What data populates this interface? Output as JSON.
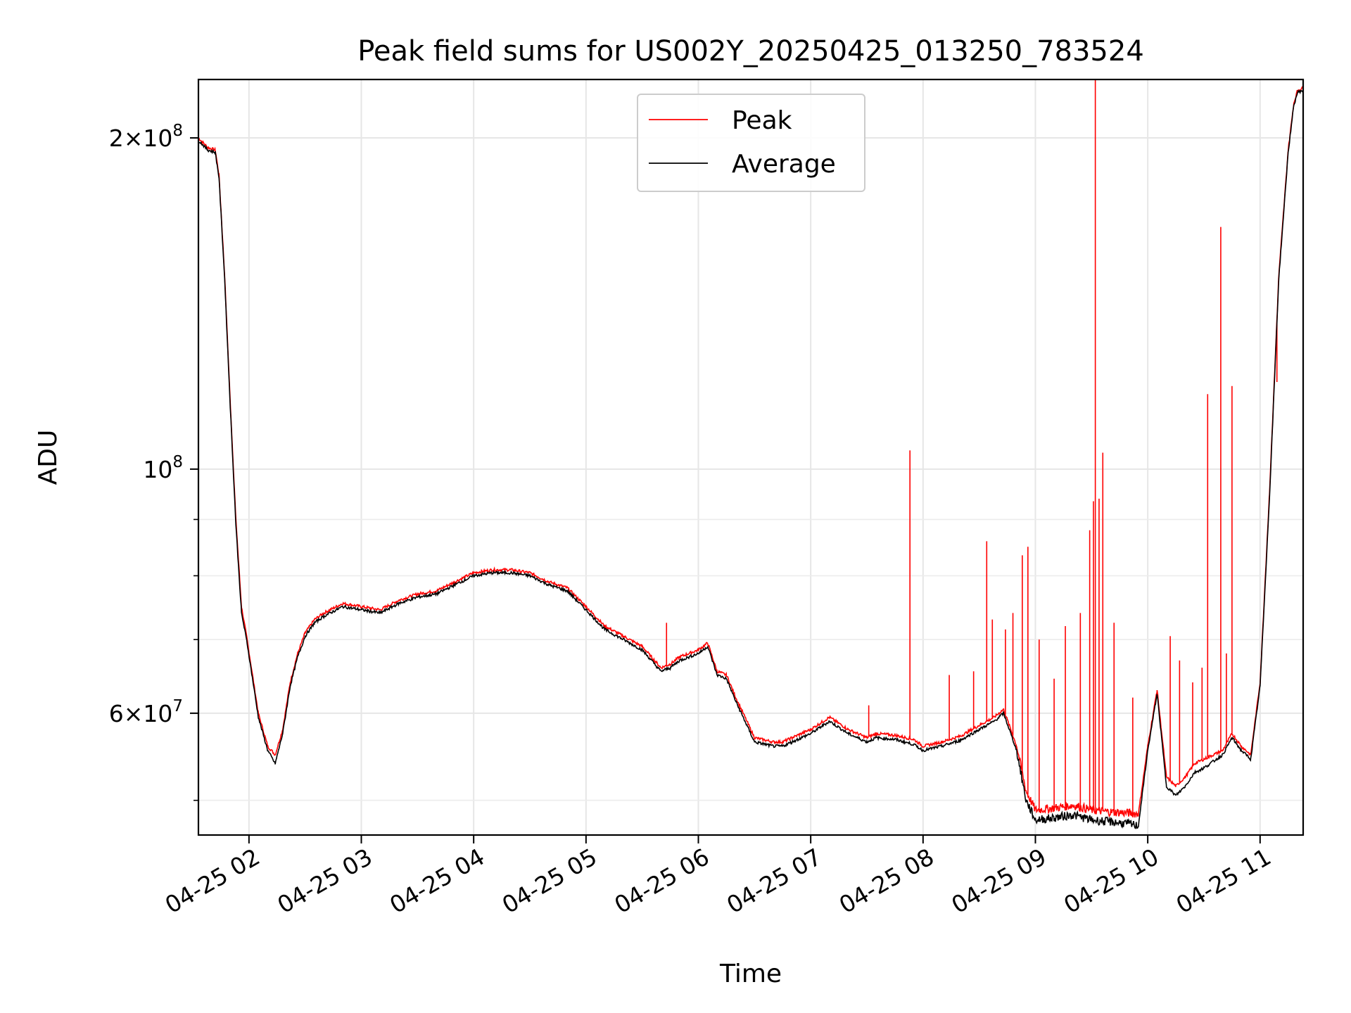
{
  "chart_data": {
    "type": "line",
    "title": "Peak field sums for US002Y_20250425_013250_783524",
    "xlabel": "Time",
    "ylabel": "ADU",
    "y_scale": "log",
    "xlim": [
      "2025-04-25 01:33",
      "2025-04-25 11:23"
    ],
    "ylim": [
      46500000,
      226000000
    ],
    "grid": true,
    "legend_position": "top-center",
    "x_ticks": [
      {
        "value": "2025-04-25 02:00",
        "label": "04-25 02"
      },
      {
        "value": "2025-04-25 03:00",
        "label": "04-25 03"
      },
      {
        "value": "2025-04-25 04:00",
        "label": "04-25 04"
      },
      {
        "value": "2025-04-25 05:00",
        "label": "04-25 05"
      },
      {
        "value": "2025-04-25 06:00",
        "label": "04-25 06"
      },
      {
        "value": "2025-04-25 07:00",
        "label": "04-25 07"
      },
      {
        "value": "2025-04-25 08:00",
        "label": "04-25 08"
      },
      {
        "value": "2025-04-25 09:00",
        "label": "04-25 09"
      },
      {
        "value": "2025-04-25 10:00",
        "label": "04-25 10"
      },
      {
        "value": "2025-04-25 11:00",
        "label": "04-25 11"
      }
    ],
    "y_major_ticks": [
      {
        "value": 60000000,
        "base": "6",
        "exp": "7"
      },
      {
        "value": 100000000,
        "base": "",
        "exp": "8"
      },
      {
        "value": 200000000,
        "base": "2",
        "exp": "8"
      }
    ],
    "y_minor_ticks": [
      50000000,
      70000000,
      80000000,
      90000000
    ],
    "series": [
      {
        "name": "Peak",
        "color": "#ff0000",
        "x": [
          "01:33",
          "01:38",
          "01:42",
          "01:44",
          "01:47",
          "01:50",
          "01:53",
          "01:56",
          "01:59",
          "02:05",
          "02:10",
          "02:14",
          "02:18",
          "02:22",
          "02:26",
          "02:30",
          "02:35",
          "02:40",
          "02:50",
          "03:00",
          "03:10",
          "03:20",
          "03:30",
          "03:40",
          "03:50",
          "04:00",
          "04:10",
          "04:20",
          "04:30",
          "04:40",
          "04:50",
          "05:00",
          "05:10",
          "05:20",
          "05:30",
          "05:40",
          "05:45",
          "05:50",
          "06:00",
          "06:05",
          "06:10",
          "06:15",
          "06:20",
          "06:30",
          "06:40",
          "06:45",
          "06:50",
          "07:00",
          "07:10",
          "07:20",
          "07:30",
          "07:35",
          "07:45",
          "07:55",
          "08:00",
          "08:10",
          "08:20",
          "08:30",
          "08:38",
          "08:43",
          "08:50",
          "08:55",
          "09:00",
          "09:10",
          "09:20",
          "09:30",
          "09:40",
          "09:50",
          "09:55",
          "10:00",
          "10:05",
          "10:10",
          "10:15",
          "10:20",
          "10:25",
          "10:30",
          "10:40",
          "10:45",
          "10:50",
          "10:55",
          "11:00",
          "11:05",
          "11:10",
          "11:15",
          "11:18",
          "11:20",
          "11:23"
        ],
        "y": [
          200000000,
          196000000,
          195000000,
          185000000,
          150000000,
          115000000,
          90000000,
          75000000,
          70000000,
          60000000,
          56000000,
          55000000,
          58000000,
          64000000,
          68000000,
          71000000,
          73000000,
          74000000,
          75500000,
          75000000,
          74500000,
          76000000,
          77000000,
          77500000,
          79000000,
          80500000,
          81000000,
          81000000,
          80500000,
          79000000,
          78000000,
          75000000,
          72000000,
          70500000,
          69000000,
          66000000,
          66500000,
          67500000,
          68500000,
          69500000,
          65500000,
          65000000,
          62000000,
          57000000,
          56500000,
          56500000,
          57000000,
          58000000,
          59500000,
          58000000,
          57000000,
          57500000,
          57300000,
          56800000,
          56000000,
          56500000,
          57200000,
          58500000,
          59500000,
          60500000,
          56000000,
          51000000,
          49000000,
          49200000,
          49500000,
          49000000,
          48800000,
          48700000,
          48600000,
          56000000,
          63000000,
          52500000,
          51500000,
          52500000,
          54000000,
          54500000,
          55500000,
          57500000,
          56000000,
          55000000,
          64000000,
          95000000,
          150000000,
          195000000,
          215000000,
          221000000,
          222000000
        ],
        "spikes": [
          {
            "x": "05:43",
            "y": 72500000
          },
          {
            "x": "07:31",
            "y": 61000000
          },
          {
            "x": "07:53",
            "y": 104000000
          },
          {
            "x": "08:14",
            "y": 65000000
          },
          {
            "x": "08:27",
            "y": 65500000
          },
          {
            "x": "08:34",
            "y": 86000000
          },
          {
            "x": "08:37",
            "y": 73000000
          },
          {
            "x": "08:44",
            "y": 71500000
          },
          {
            "x": "08:48",
            "y": 74000000
          },
          {
            "x": "08:53",
            "y": 83500000
          },
          {
            "x": "08:56",
            "y": 85000000
          },
          {
            "x": "09:02",
            "y": 70000000
          },
          {
            "x": "09:10",
            "y": 64500000
          },
          {
            "x": "09:16",
            "y": 72000000
          },
          {
            "x": "09:24",
            "y": 74000000
          },
          {
            "x": "09:29",
            "y": 88000000
          },
          {
            "x": "09:31",
            "y": 93500000
          },
          {
            "x": "09:32",
            "y": 226000000
          },
          {
            "x": "09:34",
            "y": 94000000
          },
          {
            "x": "09:36",
            "y": 103500000
          },
          {
            "x": "09:42",
            "y": 72500000
          },
          {
            "x": "09:52",
            "y": 62000000
          },
          {
            "x": "10:12",
            "y": 70500000
          },
          {
            "x": "10:17",
            "y": 67000000
          },
          {
            "x": "10:24",
            "y": 64000000
          },
          {
            "x": "10:29",
            "y": 66000000
          },
          {
            "x": "10:32",
            "y": 117000000
          },
          {
            "x": "10:39",
            "y": 166000000
          },
          {
            "x": "10:42",
            "y": 68000000
          },
          {
            "x": "10:45",
            "y": 119000000
          },
          {
            "x": "11:09",
            "y": 120000000
          }
        ]
      },
      {
        "name": "Average",
        "color": "#000000",
        "x": [
          "01:33",
          "01:38",
          "01:42",
          "01:44",
          "01:47",
          "01:50",
          "01:53",
          "01:56",
          "01:59",
          "02:05",
          "02:10",
          "02:14",
          "02:18",
          "02:22",
          "02:26",
          "02:30",
          "02:35",
          "02:40",
          "02:50",
          "03:00",
          "03:10",
          "03:20",
          "03:30",
          "03:40",
          "03:50",
          "04:00",
          "04:10",
          "04:20",
          "04:30",
          "04:40",
          "04:50",
          "05:00",
          "05:10",
          "05:20",
          "05:30",
          "05:40",
          "05:45",
          "05:50",
          "06:00",
          "06:05",
          "06:10",
          "06:15",
          "06:20",
          "06:30",
          "06:40",
          "06:45",
          "06:50",
          "07:00",
          "07:10",
          "07:20",
          "07:30",
          "07:35",
          "07:45",
          "07:55",
          "08:00",
          "08:10",
          "08:20",
          "08:30",
          "08:38",
          "08:43",
          "08:50",
          "08:55",
          "09:00",
          "09:10",
          "09:20",
          "09:30",
          "09:40",
          "09:50",
          "09:55",
          "10:00",
          "10:05",
          "10:10",
          "10:15",
          "10:20",
          "10:25",
          "10:30",
          "10:40",
          "10:45",
          "10:50",
          "10:55",
          "11:00",
          "11:05",
          "11:10",
          "11:15",
          "11:18",
          "11:20",
          "11:23"
        ],
        "y": [
          199000000,
          195000000,
          194000000,
          184000000,
          149000000,
          114000000,
          89000000,
          74000000,
          69500000,
          59500000,
          55500000,
          54000000,
          57500000,
          63500000,
          67500000,
          70500000,
          72500000,
          73500000,
          75000000,
          74500000,
          74000000,
          75500000,
          76500000,
          77000000,
          78500000,
          80000000,
          80500000,
          80500000,
          80000000,
          78500000,
          77500000,
          74500000,
          71500000,
          70000000,
          68500000,
          65500000,
          66000000,
          67000000,
          68000000,
          69000000,
          65000000,
          64500000,
          61500000,
          56500000,
          56000000,
          56000000,
          56500000,
          57500000,
          59000000,
          57500000,
          56500000,
          57000000,
          56800000,
          56200000,
          55500000,
          56000000,
          56700000,
          58000000,
          59000000,
          60000000,
          55500000,
          50000000,
          48000000,
          48200000,
          48500000,
          48000000,
          47800000,
          47600000,
          47400000,
          55500000,
          62500000,
          51500000,
          50500000,
          51500000,
          53000000,
          53500000,
          55000000,
          57000000,
          55500000,
          54500000,
          63500000,
          94000000,
          149000000,
          194000000,
          214000000,
          220000000,
          221000000
        ]
      }
    ]
  }
}
